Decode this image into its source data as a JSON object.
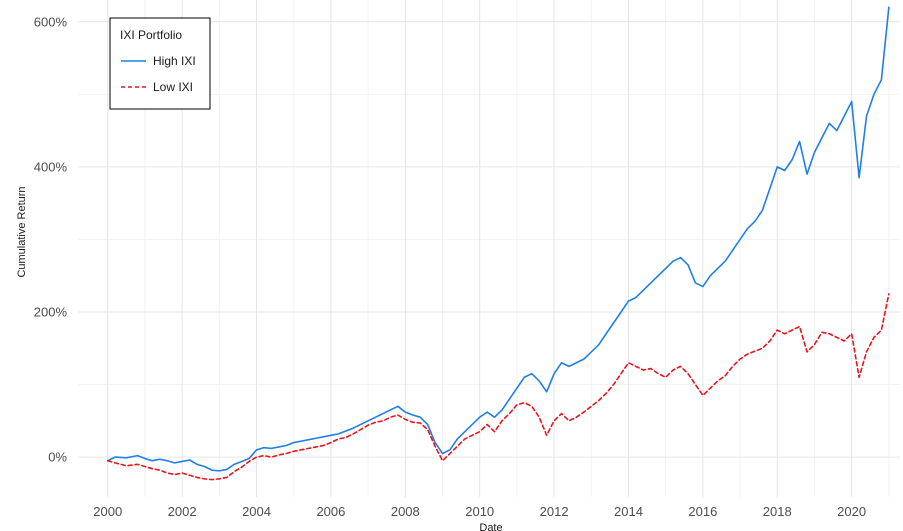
{
  "chart_data": {
    "type": "line",
    "title": "",
    "xlabel": "Date",
    "ylabel": "Cumulative Return",
    "x_range": [
      1999.2,
      2021.3
    ],
    "ylim": [
      -0.55,
      6.3
    ],
    "grid": true,
    "x_ticks": [
      {
        "value": 2000,
        "label": "2000"
      },
      {
        "value": 2002,
        "label": "2002"
      },
      {
        "value": 2004,
        "label": "2004"
      },
      {
        "value": 2006,
        "label": "2006"
      },
      {
        "value": 2008,
        "label": "2008"
      },
      {
        "value": 2010,
        "label": "2010"
      },
      {
        "value": 2012,
        "label": "2012"
      },
      {
        "value": 2014,
        "label": "2014"
      },
      {
        "value": 2016,
        "label": "2016"
      },
      {
        "value": 2018,
        "label": "2018"
      },
      {
        "value": 2020,
        "label": "2020"
      }
    ],
    "y_ticks": [
      {
        "value": 0,
        "label": "0%"
      },
      {
        "value": 2,
        "label": "200%"
      },
      {
        "value": 4,
        "label": "400%"
      },
      {
        "value": 6,
        "label": "600%"
      }
    ],
    "legend": {
      "title": "IXI Portfolio",
      "placement": "top-left"
    },
    "series": [
      {
        "name": "High IXI",
        "color": "#1f7fe8",
        "dash": "solid",
        "points": [
          [
            2000.0,
            -0.05
          ],
          [
            2000.2,
            0.0
          ],
          [
            2000.5,
            -0.01
          ],
          [
            2000.8,
            0.02
          ],
          [
            2001.0,
            -0.02
          ],
          [
            2001.2,
            -0.05
          ],
          [
            2001.4,
            -0.03
          ],
          [
            2001.6,
            -0.05
          ],
          [
            2001.8,
            -0.08
          ],
          [
            2002.0,
            -0.06
          ],
          [
            2002.2,
            -0.04
          ],
          [
            2002.4,
            -0.1
          ],
          [
            2002.6,
            -0.13
          ],
          [
            2002.8,
            -0.18
          ],
          [
            2003.0,
            -0.19
          ],
          [
            2003.2,
            -0.17
          ],
          [
            2003.4,
            -0.1
          ],
          [
            2003.6,
            -0.06
          ],
          [
            2003.8,
            -0.02
          ],
          [
            2004.0,
            0.1
          ],
          [
            2004.2,
            0.13
          ],
          [
            2004.4,
            0.12
          ],
          [
            2004.6,
            0.14
          ],
          [
            2004.8,
            0.16
          ],
          [
            2005.0,
            0.2
          ],
          [
            2005.2,
            0.22
          ],
          [
            2005.4,
            0.24
          ],
          [
            2005.6,
            0.26
          ],
          [
            2005.8,
            0.28
          ],
          [
            2006.0,
            0.3
          ],
          [
            2006.2,
            0.32
          ],
          [
            2006.4,
            0.36
          ],
          [
            2006.6,
            0.4
          ],
          [
            2006.8,
            0.45
          ],
          [
            2007.0,
            0.5
          ],
          [
            2007.2,
            0.55
          ],
          [
            2007.4,
            0.6
          ],
          [
            2007.6,
            0.65
          ],
          [
            2007.8,
            0.7
          ],
          [
            2008.0,
            0.62
          ],
          [
            2008.2,
            0.58
          ],
          [
            2008.4,
            0.55
          ],
          [
            2008.6,
            0.45
          ],
          [
            2008.8,
            0.2
          ],
          [
            2009.0,
            0.05
          ],
          [
            2009.2,
            0.1
          ],
          [
            2009.4,
            0.25
          ],
          [
            2009.6,
            0.35
          ],
          [
            2009.8,
            0.45
          ],
          [
            2010.0,
            0.55
          ],
          [
            2010.2,
            0.62
          ],
          [
            2010.4,
            0.55
          ],
          [
            2010.6,
            0.65
          ],
          [
            2010.8,
            0.8
          ],
          [
            2011.0,
            0.95
          ],
          [
            2011.2,
            1.1
          ],
          [
            2011.4,
            1.15
          ],
          [
            2011.6,
            1.05
          ],
          [
            2011.8,
            0.9
          ],
          [
            2012.0,
            1.15
          ],
          [
            2012.2,
            1.3
          ],
          [
            2012.4,
            1.25
          ],
          [
            2012.6,
            1.3
          ],
          [
            2012.8,
            1.35
          ],
          [
            2013.0,
            1.45
          ],
          [
            2013.2,
            1.55
          ],
          [
            2013.4,
            1.7
          ],
          [
            2013.6,
            1.85
          ],
          [
            2013.8,
            2.0
          ],
          [
            2014.0,
            2.15
          ],
          [
            2014.2,
            2.2
          ],
          [
            2014.4,
            2.3
          ],
          [
            2014.6,
            2.4
          ],
          [
            2014.8,
            2.5
          ],
          [
            2015.0,
            2.6
          ],
          [
            2015.2,
            2.7
          ],
          [
            2015.4,
            2.75
          ],
          [
            2015.6,
            2.65
          ],
          [
            2015.8,
            2.4
          ],
          [
            2016.0,
            2.35
          ],
          [
            2016.2,
            2.5
          ],
          [
            2016.4,
            2.6
          ],
          [
            2016.6,
            2.7
          ],
          [
            2016.8,
            2.85
          ],
          [
            2017.0,
            3.0
          ],
          [
            2017.2,
            3.15
          ],
          [
            2017.4,
            3.25
          ],
          [
            2017.6,
            3.4
          ],
          [
            2017.8,
            3.7
          ],
          [
            2018.0,
            4.0
          ],
          [
            2018.2,
            3.95
          ],
          [
            2018.4,
            4.1
          ],
          [
            2018.6,
            4.35
          ],
          [
            2018.8,
            3.9
          ],
          [
            2019.0,
            4.2
          ],
          [
            2019.2,
            4.4
          ],
          [
            2019.4,
            4.6
          ],
          [
            2019.6,
            4.5
          ],
          [
            2019.8,
            4.7
          ],
          [
            2020.0,
            4.9
          ],
          [
            2020.2,
            3.85
          ],
          [
            2020.4,
            4.7
          ],
          [
            2020.6,
            5.0
          ],
          [
            2020.8,
            5.2
          ],
          [
            2021.0,
            6.2
          ]
        ]
      },
      {
        "name": "Low IXI",
        "color": "#e8141e",
        "dash": "dashed",
        "points": [
          [
            2000.0,
            -0.05
          ],
          [
            2000.2,
            -0.08
          ],
          [
            2000.5,
            -0.12
          ],
          [
            2000.8,
            -0.1
          ],
          [
            2001.0,
            -0.13
          ],
          [
            2001.2,
            -0.16
          ],
          [
            2001.4,
            -0.18
          ],
          [
            2001.6,
            -0.22
          ],
          [
            2001.8,
            -0.24
          ],
          [
            2002.0,
            -0.22
          ],
          [
            2002.2,
            -0.25
          ],
          [
            2002.4,
            -0.28
          ],
          [
            2002.6,
            -0.3
          ],
          [
            2002.8,
            -0.31
          ],
          [
            2003.0,
            -0.3
          ],
          [
            2003.2,
            -0.28
          ],
          [
            2003.4,
            -0.2
          ],
          [
            2003.6,
            -0.14
          ],
          [
            2003.8,
            -0.06
          ],
          [
            2004.0,
            0.0
          ],
          [
            2004.2,
            0.02
          ],
          [
            2004.4,
            0.0
          ],
          [
            2004.6,
            0.03
          ],
          [
            2004.8,
            0.05
          ],
          [
            2005.0,
            0.08
          ],
          [
            2005.2,
            0.1
          ],
          [
            2005.4,
            0.12
          ],
          [
            2005.6,
            0.14
          ],
          [
            2005.8,
            0.16
          ],
          [
            2006.0,
            0.2
          ],
          [
            2006.2,
            0.25
          ],
          [
            2006.4,
            0.27
          ],
          [
            2006.6,
            0.32
          ],
          [
            2006.8,
            0.38
          ],
          [
            2007.0,
            0.44
          ],
          [
            2007.2,
            0.48
          ],
          [
            2007.4,
            0.5
          ],
          [
            2007.6,
            0.55
          ],
          [
            2007.8,
            0.58
          ],
          [
            2008.0,
            0.52
          ],
          [
            2008.2,
            0.48
          ],
          [
            2008.4,
            0.47
          ],
          [
            2008.6,
            0.38
          ],
          [
            2008.8,
            0.15
          ],
          [
            2009.0,
            -0.05
          ],
          [
            2009.2,
            0.05
          ],
          [
            2009.4,
            0.15
          ],
          [
            2009.6,
            0.25
          ],
          [
            2009.8,
            0.3
          ],
          [
            2010.0,
            0.35
          ],
          [
            2010.2,
            0.45
          ],
          [
            2010.4,
            0.35
          ],
          [
            2010.6,
            0.5
          ],
          [
            2010.8,
            0.6
          ],
          [
            2011.0,
            0.72
          ],
          [
            2011.2,
            0.75
          ],
          [
            2011.4,
            0.7
          ],
          [
            2011.6,
            0.55
          ],
          [
            2011.8,
            0.3
          ],
          [
            2012.0,
            0.5
          ],
          [
            2012.2,
            0.6
          ],
          [
            2012.4,
            0.5
          ],
          [
            2012.6,
            0.55
          ],
          [
            2012.8,
            0.62
          ],
          [
            2013.0,
            0.7
          ],
          [
            2013.2,
            0.78
          ],
          [
            2013.4,
            0.88
          ],
          [
            2013.6,
            1.0
          ],
          [
            2013.8,
            1.15
          ],
          [
            2014.0,
            1.3
          ],
          [
            2014.2,
            1.25
          ],
          [
            2014.4,
            1.2
          ],
          [
            2014.6,
            1.22
          ],
          [
            2014.8,
            1.15
          ],
          [
            2015.0,
            1.1
          ],
          [
            2015.2,
            1.2
          ],
          [
            2015.4,
            1.25
          ],
          [
            2015.6,
            1.15
          ],
          [
            2015.8,
            1.0
          ],
          [
            2016.0,
            0.85
          ],
          [
            2016.2,
            0.95
          ],
          [
            2016.4,
            1.05
          ],
          [
            2016.6,
            1.12
          ],
          [
            2016.8,
            1.25
          ],
          [
            2017.0,
            1.35
          ],
          [
            2017.2,
            1.42
          ],
          [
            2017.4,
            1.46
          ],
          [
            2017.6,
            1.5
          ],
          [
            2017.8,
            1.6
          ],
          [
            2018.0,
            1.75
          ],
          [
            2018.2,
            1.7
          ],
          [
            2018.4,
            1.75
          ],
          [
            2018.6,
            1.8
          ],
          [
            2018.8,
            1.45
          ],
          [
            2019.0,
            1.55
          ],
          [
            2019.2,
            1.72
          ],
          [
            2019.4,
            1.7
          ],
          [
            2019.6,
            1.65
          ],
          [
            2019.8,
            1.6
          ],
          [
            2020.0,
            1.7
          ],
          [
            2020.2,
            1.1
          ],
          [
            2020.4,
            1.45
          ],
          [
            2020.6,
            1.65
          ],
          [
            2020.8,
            1.75
          ],
          [
            2021.0,
            2.25
          ]
        ]
      }
    ]
  }
}
